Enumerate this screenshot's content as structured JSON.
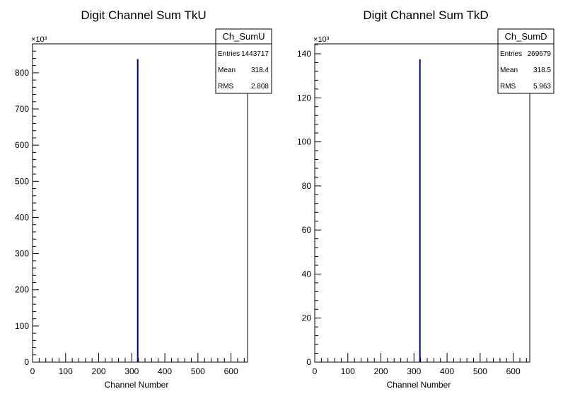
{
  "chart_data": [
    {
      "type": "histogram",
      "title": "Digit Channel Sum TkU",
      "xlabel": "Channel Number",
      "ylabel": "",
      "xlim": [
        0,
        650
      ],
      "ylim": [
        0,
        880
      ],
      "y_multiplier": "×10³",
      "x_ticks": [
        0,
        100,
        200,
        300,
        400,
        500,
        600
      ],
      "y_ticks": [
        0,
        100,
        200,
        300,
        400,
        500,
        600,
        700,
        800
      ],
      "bins": [
        {
          "x": 318,
          "y": 838
        }
      ],
      "color": "#000080",
      "stats": {
        "name": "Ch_SumU",
        "rows": [
          {
            "label": "Entries",
            "value": "1443717"
          },
          {
            "label": "Mean",
            "value": "318.4"
          },
          {
            "label": "RMS",
            "value": "2.808"
          }
        ]
      }
    },
    {
      "type": "histogram",
      "title": "Digit Channel Sum TkD",
      "xlabel": "Channel Number",
      "ylabel": "",
      "xlim": [
        0,
        650
      ],
      "ylim": [
        0,
        144.5
      ],
      "y_multiplier": "×10³",
      "x_ticks": [
        0,
        100,
        200,
        300,
        400,
        500,
        600
      ],
      "y_ticks": [
        0,
        20,
        40,
        60,
        80,
        100,
        120,
        140
      ],
      "bins": [
        {
          "x": 318,
          "y": 137.5
        }
      ],
      "color": "#000080",
      "stats": {
        "name": "Ch_SumD",
        "rows": [
          {
            "label": "Entries",
            "value": "269679"
          },
          {
            "label": "Mean",
            "value": "318.5"
          },
          {
            "label": "RMS",
            "value": "5.963"
          }
        ]
      }
    }
  ]
}
